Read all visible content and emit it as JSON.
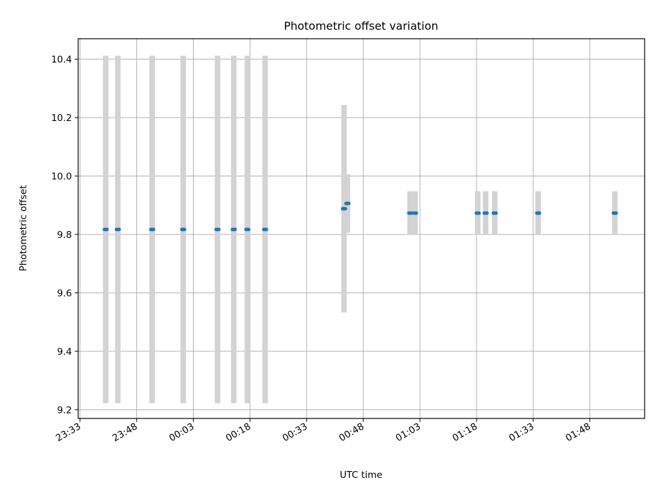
{
  "chart_data": {
    "type": "scatter",
    "title": "Photometric offset variation",
    "xlabel": "UTC time",
    "ylabel": "Photometric offset",
    "x_ticks": [
      "23:33",
      "23:48",
      "00:03",
      "00:18",
      "00:33",
      "00:48",
      "01:03",
      "01:18",
      "01:33",
      "01:48"
    ],
    "x_tick_minutes": [
      -27,
      -12,
      3,
      18,
      33,
      48,
      63,
      78,
      93,
      108
    ],
    "xlim_minutes": [
      -27.5,
      122.5
    ],
    "y_ticks": [
      "9.2",
      "9.4",
      "9.6",
      "9.8",
      "10.0",
      "10.2",
      "10.4"
    ],
    "ylim": [
      9.17,
      10.47
    ],
    "grid": true,
    "point_color": "#1f77b4",
    "errorbar_color": "#d3d3d3",
    "x_axis_note": "times are minutes relative to 00:00 UTC",
    "points": [
      {
        "x": -20.2,
        "y": 9.817,
        "err": 0.595
      },
      {
        "x": -17.0,
        "y": 9.817,
        "err": 0.595
      },
      {
        "x": -7.9,
        "y": 9.817,
        "err": 0.595
      },
      {
        "x": 0.3,
        "y": 9.817,
        "err": 0.595
      },
      {
        "x": 9.4,
        "y": 9.817,
        "err": 0.595
      },
      {
        "x": 13.7,
        "y": 9.817,
        "err": 0.595
      },
      {
        "x": 17.3,
        "y": 9.817,
        "err": 0.595
      },
      {
        "x": 22.0,
        "y": 9.817,
        "err": 0.595
      },
      {
        "x": 42.9,
        "y": 9.888,
        "err": 0.355
      },
      {
        "x": 43.8,
        "y": 9.906,
        "err": 0.1
      },
      {
        "x": 60.4,
        "y": 9.873,
        "err": 0.075
      },
      {
        "x": 61.7,
        "y": 9.873,
        "err": 0.075
      },
      {
        "x": 78.3,
        "y": 9.873,
        "err": 0.075
      },
      {
        "x": 80.4,
        "y": 9.873,
        "err": 0.075
      },
      {
        "x": 82.8,
        "y": 9.873,
        "err": 0.075
      },
      {
        "x": 94.3,
        "y": 9.873,
        "err": 0.075
      },
      {
        "x": 114.6,
        "y": 9.873,
        "err": 0.075
      }
    ]
  }
}
